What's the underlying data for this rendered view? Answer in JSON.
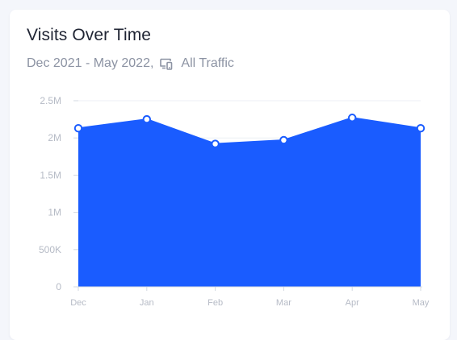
{
  "card": {
    "title": "Visits Over Time",
    "date_range": "Dec 2021 - May 2022,",
    "traffic_label": "All Traffic",
    "device_icon": "devices-icon"
  },
  "colors": {
    "area": "#1a5cff",
    "point_stroke": "#1a5cff",
    "point_fill": "#ffffff",
    "grid": "#eceff4",
    "axis": "#d3d8e1"
  },
  "chart_data": {
    "type": "area",
    "categories": [
      "Dec",
      "Jan",
      "Feb",
      "Mar",
      "Apr",
      "May"
    ],
    "series": [
      {
        "values": [
          2130000,
          2250000,
          1920000,
          1970000,
          2270000,
          2130000
        ]
      }
    ],
    "ylim": [
      0,
      2500000
    ],
    "y_ticks": [
      {
        "value": 0,
        "label": "0"
      },
      {
        "value": 500000,
        "label": "500K"
      },
      {
        "value": 1000000,
        "label": "1M"
      },
      {
        "value": 1500000,
        "label": "1.5M"
      },
      {
        "value": 2000000,
        "label": "2M"
      },
      {
        "value": 2500000,
        "label": "2.5M"
      }
    ],
    "title": "Visits Over Time",
    "xlabel": "",
    "ylabel": "",
    "grid": true,
    "legend": "none"
  }
}
